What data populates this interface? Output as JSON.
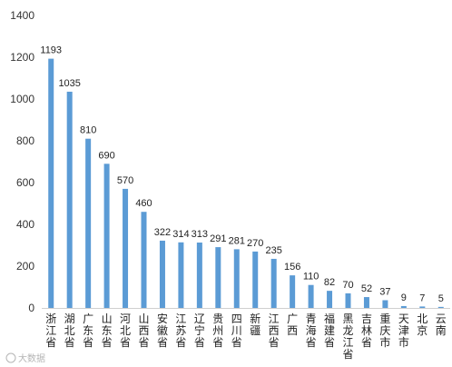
{
  "chart_data": {
    "type": "bar",
    "categories": [
      "浙江省",
      "湖北省",
      "广东省",
      "山东省",
      "河北省",
      "山西省",
      "安徽省",
      "江苏省",
      "辽宁省",
      "贵州省",
      "四川省",
      "新疆",
      "江西省",
      "广西",
      "青海省",
      "福建省",
      "黑龙江省",
      "吉林省",
      "重庆市",
      "天津市",
      "北京",
      "云南"
    ],
    "values": [
      1193,
      1035,
      810,
      690,
      570,
      460,
      322,
      314,
      313,
      291,
      281,
      270,
      235,
      156,
      110,
      82,
      70,
      52,
      37,
      9,
      7,
      5
    ],
    "ylim": [
      0,
      1400
    ],
    "yticks": [
      0,
      200,
      400,
      600,
      800,
      1000,
      1200,
      1400
    ],
    "bar_color": "#5b9bd5",
    "grid": false,
    "title": "",
    "xlabel": "",
    "ylabel": ""
  }
}
